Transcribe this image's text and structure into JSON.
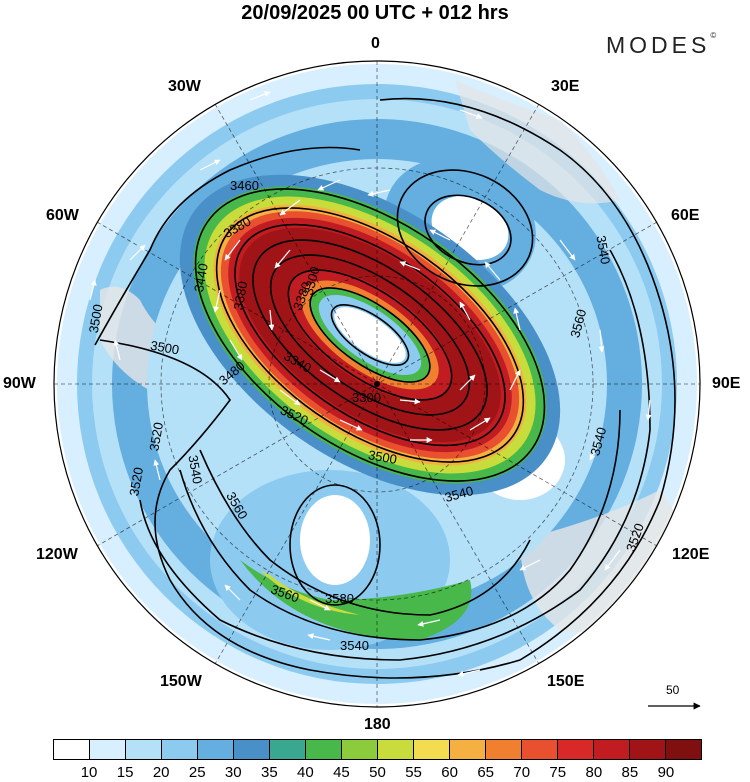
{
  "title": "20/09/2025  00 UTC  + 012 hrs",
  "brand": "MODES",
  "brand_mark": "©",
  "longitudes": {
    "top": "0",
    "bottom": "180",
    "left": "90W",
    "right": "90E",
    "tl1": "30W",
    "tl2": "60W",
    "tr1": "30E",
    "tr2": "60E",
    "bl1": "120W",
    "bl2": "150W",
    "br1": "120E",
    "br2": "150E"
  },
  "contour_labels": [
    "3460",
    "3380",
    "3380",
    "3380",
    "3300",
    "3440",
    "3500",
    "3500",
    "3480",
    "3340",
    "3300",
    "3520",
    "3520",
    "3520",
    "3540",
    "3560",
    "3560",
    "3580",
    "3540",
    "3540",
    "3540",
    "3520",
    "3540",
    "3560",
    "3500"
  ],
  "wind_reference": "50",
  "colorbar": {
    "ticks": [
      "10",
      "15",
      "20",
      "25",
      "30",
      "35",
      "40",
      "45",
      "50",
      "55",
      "60",
      "65",
      "70",
      "75",
      "80",
      "85",
      "90"
    ],
    "colors": [
      "#ffffff",
      "#d7efff",
      "#b4e0f8",
      "#8ccaf0",
      "#64aee0",
      "#4a90c8",
      "#3aa890",
      "#48b84a",
      "#8ccc3c",
      "#c8dc3c",
      "#f4dc50",
      "#f4b040",
      "#f08030",
      "#e85030",
      "#d82828",
      "#c01c22",
      "#a01418",
      "#801010"
    ]
  },
  "colors": {
    "jet_core": "#a81818",
    "land": "#e6e6e6"
  }
}
